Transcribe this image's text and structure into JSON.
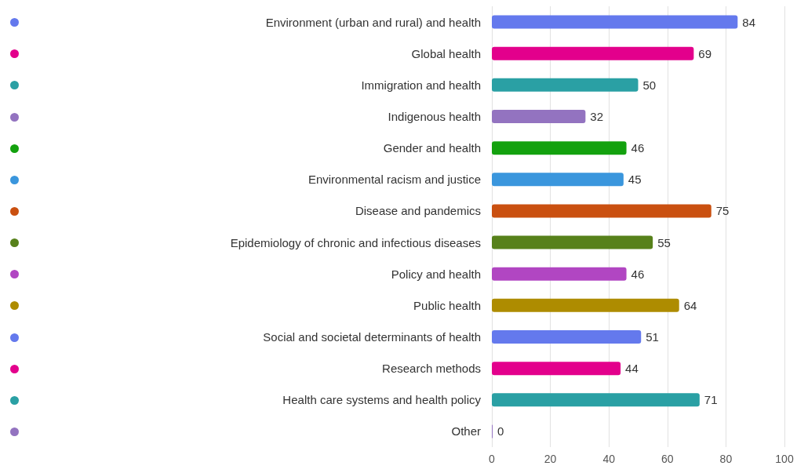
{
  "chart_data": {
    "type": "bar",
    "orientation": "horizontal",
    "categories": [
      "Environment (urban and rural) and health",
      "Global health",
      "Immigration and health",
      "Indigenous health",
      "Gender and health",
      "Environmental racism and justice",
      "Disease and pandemics",
      "Epidemiology of chronic and infectious diseases",
      "Policy and health",
      "Public health",
      "Social and societal determinants of health",
      "Research methods",
      "Health care systems and health policy",
      "Other"
    ],
    "values": [
      84,
      69,
      50,
      32,
      46,
      45,
      75,
      55,
      46,
      64,
      51,
      44,
      71,
      0
    ],
    "colors": [
      "#6479ed",
      "#e3008c",
      "#2aa0a4",
      "#9373c0",
      "#13a10e",
      "#3a96dd",
      "#ca5010",
      "#57811b",
      "#b146c2",
      "#ae8c00",
      "#6479ed",
      "#e3008c",
      "#2aa0a4",
      "#9373c0"
    ],
    "xlim": [
      0,
      100
    ],
    "xticks": [
      0,
      20,
      40,
      60,
      80,
      100
    ],
    "grid": "x",
    "data_labels": true
  }
}
